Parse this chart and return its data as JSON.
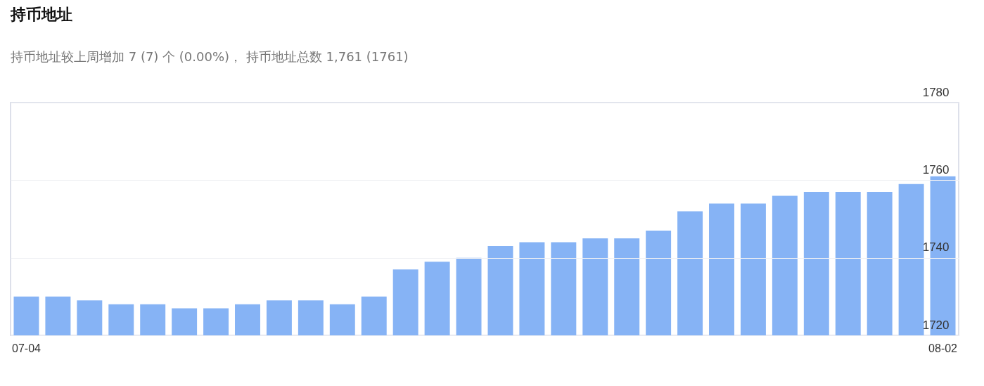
{
  "chart_data": {
    "type": "bar",
    "title": "持币地址",
    "subtitle": "持币地址较上周增加 7 (7) 个 (0.00%)， 持币地址总数 1,761 (1761)",
    "categories": [
      "07-04",
      null,
      null,
      null,
      null,
      null,
      null,
      null,
      null,
      null,
      null,
      null,
      null,
      null,
      null,
      null,
      null,
      null,
      null,
      null,
      null,
      null,
      null,
      null,
      null,
      null,
      null,
      null,
      null,
      "08-02"
    ],
    "values": [
      1730,
      1730,
      1729,
      1728,
      1728,
      1727,
      1727,
      1728,
      1729,
      1729,
      1728,
      1730,
      1737,
      1739,
      1740,
      1743,
      1744,
      1744,
      1745,
      1745,
      1747,
      1752,
      1754,
      1754,
      1756,
      1757,
      1757,
      1757,
      1759,
      1761
    ],
    "color": "#86b3f5",
    "ylim": [
      1720,
      1780
    ],
    "yticks": [
      1720,
      1740,
      1760,
      1780
    ],
    "grid": "y"
  }
}
